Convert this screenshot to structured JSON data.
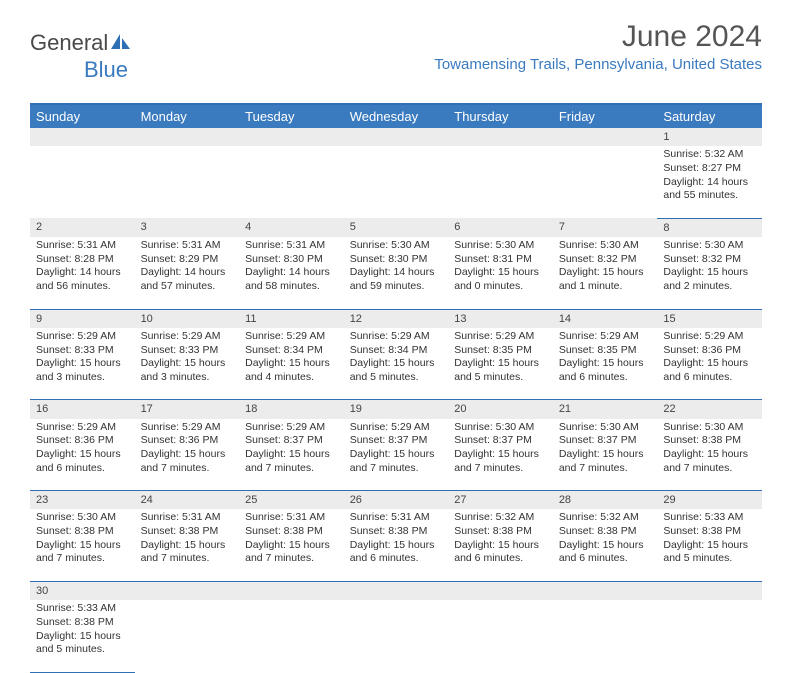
{
  "logo": {
    "part1": "General",
    "part2": "Blue"
  },
  "title": "June 2024",
  "location": "Towamensing Trails, Pennsylvania, United States",
  "colors": {
    "header_bg": "#3a7abf",
    "header_text": "#ffffff",
    "rule": "#2f6fb3",
    "daynum_bg": "#ececec",
    "accent": "#3a7abf"
  },
  "weekdays": [
    "Sunday",
    "Monday",
    "Tuesday",
    "Wednesday",
    "Thursday",
    "Friday",
    "Saturday"
  ],
  "weeks": [
    [
      null,
      null,
      null,
      null,
      null,
      null,
      {
        "n": "1",
        "sr": "Sunrise: 5:32 AM",
        "ss": "Sunset: 8:27 PM",
        "dl": "Daylight: 14 hours and 55 minutes."
      }
    ],
    [
      {
        "n": "2",
        "sr": "Sunrise: 5:31 AM",
        "ss": "Sunset: 8:28 PM",
        "dl": "Daylight: 14 hours and 56 minutes."
      },
      {
        "n": "3",
        "sr": "Sunrise: 5:31 AM",
        "ss": "Sunset: 8:29 PM",
        "dl": "Daylight: 14 hours and 57 minutes."
      },
      {
        "n": "4",
        "sr": "Sunrise: 5:31 AM",
        "ss": "Sunset: 8:30 PM",
        "dl": "Daylight: 14 hours and 58 minutes."
      },
      {
        "n": "5",
        "sr": "Sunrise: 5:30 AM",
        "ss": "Sunset: 8:30 PM",
        "dl": "Daylight: 14 hours and 59 minutes."
      },
      {
        "n": "6",
        "sr": "Sunrise: 5:30 AM",
        "ss": "Sunset: 8:31 PM",
        "dl": "Daylight: 15 hours and 0 minutes."
      },
      {
        "n": "7",
        "sr": "Sunrise: 5:30 AM",
        "ss": "Sunset: 8:32 PM",
        "dl": "Daylight: 15 hours and 1 minute."
      },
      {
        "n": "8",
        "sr": "Sunrise: 5:30 AM",
        "ss": "Sunset: 8:32 PM",
        "dl": "Daylight: 15 hours and 2 minutes."
      }
    ],
    [
      {
        "n": "9",
        "sr": "Sunrise: 5:29 AM",
        "ss": "Sunset: 8:33 PM",
        "dl": "Daylight: 15 hours and 3 minutes."
      },
      {
        "n": "10",
        "sr": "Sunrise: 5:29 AM",
        "ss": "Sunset: 8:33 PM",
        "dl": "Daylight: 15 hours and 3 minutes."
      },
      {
        "n": "11",
        "sr": "Sunrise: 5:29 AM",
        "ss": "Sunset: 8:34 PM",
        "dl": "Daylight: 15 hours and 4 minutes."
      },
      {
        "n": "12",
        "sr": "Sunrise: 5:29 AM",
        "ss": "Sunset: 8:34 PM",
        "dl": "Daylight: 15 hours and 5 minutes."
      },
      {
        "n": "13",
        "sr": "Sunrise: 5:29 AM",
        "ss": "Sunset: 8:35 PM",
        "dl": "Daylight: 15 hours and 5 minutes."
      },
      {
        "n": "14",
        "sr": "Sunrise: 5:29 AM",
        "ss": "Sunset: 8:35 PM",
        "dl": "Daylight: 15 hours and 6 minutes."
      },
      {
        "n": "15",
        "sr": "Sunrise: 5:29 AM",
        "ss": "Sunset: 8:36 PM",
        "dl": "Daylight: 15 hours and 6 minutes."
      }
    ],
    [
      {
        "n": "16",
        "sr": "Sunrise: 5:29 AM",
        "ss": "Sunset: 8:36 PM",
        "dl": "Daylight: 15 hours and 6 minutes."
      },
      {
        "n": "17",
        "sr": "Sunrise: 5:29 AM",
        "ss": "Sunset: 8:36 PM",
        "dl": "Daylight: 15 hours and 7 minutes."
      },
      {
        "n": "18",
        "sr": "Sunrise: 5:29 AM",
        "ss": "Sunset: 8:37 PM",
        "dl": "Daylight: 15 hours and 7 minutes."
      },
      {
        "n": "19",
        "sr": "Sunrise: 5:29 AM",
        "ss": "Sunset: 8:37 PM",
        "dl": "Daylight: 15 hours and 7 minutes."
      },
      {
        "n": "20",
        "sr": "Sunrise: 5:30 AM",
        "ss": "Sunset: 8:37 PM",
        "dl": "Daylight: 15 hours and 7 minutes."
      },
      {
        "n": "21",
        "sr": "Sunrise: 5:30 AM",
        "ss": "Sunset: 8:37 PM",
        "dl": "Daylight: 15 hours and 7 minutes."
      },
      {
        "n": "22",
        "sr": "Sunrise: 5:30 AM",
        "ss": "Sunset: 8:38 PM",
        "dl": "Daylight: 15 hours and 7 minutes."
      }
    ],
    [
      {
        "n": "23",
        "sr": "Sunrise: 5:30 AM",
        "ss": "Sunset: 8:38 PM",
        "dl": "Daylight: 15 hours and 7 minutes."
      },
      {
        "n": "24",
        "sr": "Sunrise: 5:31 AM",
        "ss": "Sunset: 8:38 PM",
        "dl": "Daylight: 15 hours and 7 minutes."
      },
      {
        "n": "25",
        "sr": "Sunrise: 5:31 AM",
        "ss": "Sunset: 8:38 PM",
        "dl": "Daylight: 15 hours and 7 minutes."
      },
      {
        "n": "26",
        "sr": "Sunrise: 5:31 AM",
        "ss": "Sunset: 8:38 PM",
        "dl": "Daylight: 15 hours and 6 minutes."
      },
      {
        "n": "27",
        "sr": "Sunrise: 5:32 AM",
        "ss": "Sunset: 8:38 PM",
        "dl": "Daylight: 15 hours and 6 minutes."
      },
      {
        "n": "28",
        "sr": "Sunrise: 5:32 AM",
        "ss": "Sunset: 8:38 PM",
        "dl": "Daylight: 15 hours and 6 minutes."
      },
      {
        "n": "29",
        "sr": "Sunrise: 5:33 AM",
        "ss": "Sunset: 8:38 PM",
        "dl": "Daylight: 15 hours and 5 minutes."
      }
    ],
    [
      {
        "n": "30",
        "sr": "Sunrise: 5:33 AM",
        "ss": "Sunset: 8:38 PM",
        "dl": "Daylight: 15 hours and 5 minutes."
      },
      null,
      null,
      null,
      null,
      null,
      null
    ]
  ]
}
